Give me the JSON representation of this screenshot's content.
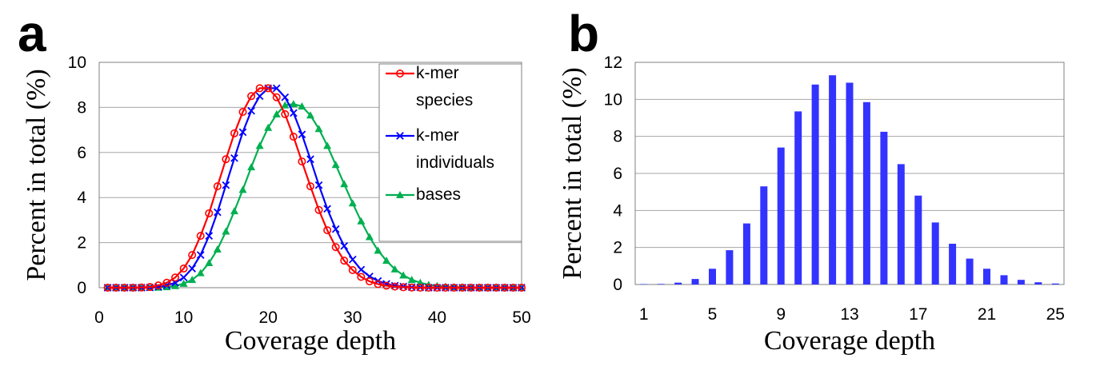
{
  "chart_data": [
    {
      "panel": "a",
      "type": "line",
      "xlabel": "Coverage depth",
      "ylabel": "Percent in total (%)",
      "xlim": [
        0,
        50
      ],
      "ylim": [
        0,
        10
      ],
      "xticks": [
        0,
        10,
        20,
        30,
        40,
        50
      ],
      "yticks": [
        0,
        2,
        4,
        6,
        8,
        10
      ],
      "grid": "horizontal",
      "legend_position": "top-right",
      "x": [
        1,
        2,
        3,
        4,
        5,
        6,
        7,
        8,
        9,
        10,
        11,
        12,
        13,
        14,
        15,
        16,
        17,
        18,
        19,
        20,
        21,
        22,
        23,
        24,
        25,
        26,
        27,
        28,
        29,
        30,
        31,
        32,
        33,
        34,
        35,
        36,
        37,
        38,
        39,
        40,
        41,
        42,
        43,
        44,
        45,
        46,
        47,
        48,
        49,
        50
      ],
      "series": [
        {
          "name": "k-mer species",
          "marker": "circle",
          "color": "#ff0000",
          "values": [
            0,
            0,
            0,
            0,
            0.01,
            0.03,
            0.1,
            0.22,
            0.45,
            0.85,
            1.45,
            2.3,
            3.3,
            4.5,
            5.7,
            6.85,
            7.8,
            8.5,
            8.85,
            8.85,
            8.45,
            7.7,
            6.7,
            5.6,
            4.5,
            3.45,
            2.55,
            1.8,
            1.2,
            0.78,
            0.48,
            0.28,
            0.16,
            0.09,
            0.05,
            0.02,
            0.01,
            0,
            0,
            0,
            0,
            0,
            0,
            0,
            0,
            0,
            0,
            0,
            0,
            0
          ]
        },
        {
          "name": "k-mer individuals",
          "marker": "x",
          "color": "#0000ff",
          "values": [
            0,
            0,
            0,
            0,
            0,
            0.01,
            0.04,
            0.1,
            0.22,
            0.45,
            0.85,
            1.45,
            2.3,
            3.35,
            4.55,
            5.75,
            6.9,
            7.85,
            8.5,
            8.85,
            8.85,
            8.45,
            7.75,
            6.8,
            5.7,
            4.55,
            3.5,
            2.6,
            1.85,
            1.25,
            0.8,
            0.5,
            0.3,
            0.17,
            0.09,
            0.05,
            0.02,
            0.01,
            0,
            0,
            0,
            0,
            0,
            0,
            0,
            0,
            0,
            0,
            0,
            0
          ]
        },
        {
          "name": "bases",
          "marker": "triangle",
          "color": "#00b050",
          "values": [
            0,
            0,
            0,
            0,
            0,
            0,
            0.01,
            0.03,
            0.08,
            0.18,
            0.35,
            0.65,
            1.1,
            1.7,
            2.5,
            3.4,
            4.35,
            5.35,
            6.3,
            7.1,
            7.7,
            8.1,
            8.15,
            8.05,
            7.65,
            7.05,
            6.3,
            5.45,
            4.6,
            3.75,
            2.95,
            2.25,
            1.65,
            1.2,
            0.82,
            0.55,
            0.35,
            0.22,
            0.13,
            0.08,
            0.05,
            0.03,
            0.02,
            0.01,
            0,
            0,
            0,
            0,
            0,
            0
          ]
        }
      ]
    },
    {
      "panel": "b",
      "type": "bar",
      "xlabel": "Coverage depth",
      "ylabel": "Percent in total (%)",
      "ylim": [
        0,
        12
      ],
      "yticks": [
        0,
        2,
        4,
        6,
        8,
        10,
        12
      ],
      "grid": "horizontal",
      "color": "#3333ff",
      "categories": [
        1,
        2,
        3,
        4,
        5,
        6,
        7,
        8,
        9,
        10,
        11,
        12,
        13,
        14,
        15,
        16,
        17,
        18,
        19,
        20,
        21,
        22,
        23,
        24,
        25
      ],
      "category_labels_shown": [
        "1",
        "5",
        "9",
        "13",
        "17",
        "21",
        "25"
      ],
      "values": [
        0.02,
        0.03,
        0.1,
        0.3,
        0.85,
        1.85,
        3.3,
        5.3,
        7.4,
        9.35,
        10.8,
        11.3,
        10.9,
        9.85,
        8.25,
        6.5,
        4.8,
        3.35,
        2.2,
        1.4,
        0.85,
        0.5,
        0.25,
        0.12,
        0.05
      ]
    }
  ]
}
